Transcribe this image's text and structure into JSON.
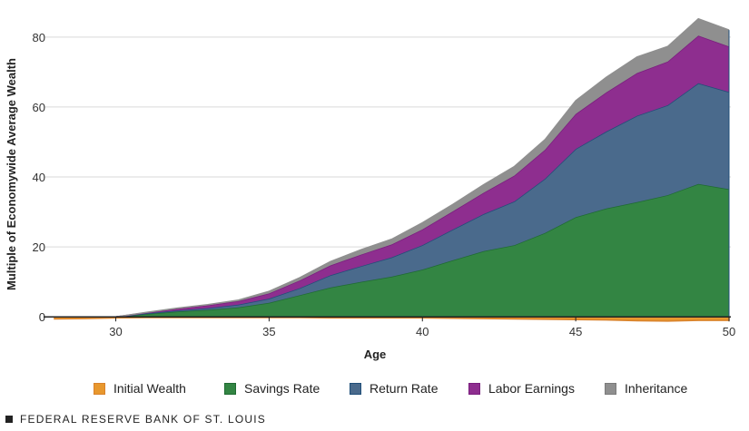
{
  "chart_data": {
    "type": "area",
    "stacked": true,
    "xlabel": "Age",
    "ylabel": "Multiple of Economywide Average Wealth",
    "xlim": [
      28,
      50
    ],
    "ylim": [
      -1.5,
      88
    ],
    "x_ticks": [
      30,
      35,
      40,
      45,
      50
    ],
    "y_ticks": [
      0,
      20,
      40,
      60,
      80
    ],
    "grid": "horizontal",
    "legend_position": "bottom",
    "x": [
      28,
      29,
      30,
      31,
      32,
      33,
      34,
      35,
      36,
      37,
      38,
      39,
      40,
      41,
      42,
      43,
      44,
      45,
      46,
      47,
      48,
      49,
      50
    ],
    "series": [
      {
        "name": "Initial Wealth",
        "color": "#E8982E",
        "stroke": "#D9822B",
        "values": [
          -0.6,
          -0.5,
          -0.3,
          -0.2,
          -0.2,
          -0.2,
          -0.2,
          -0.2,
          -0.2,
          -0.3,
          -0.3,
          -0.3,
          -0.3,
          -0.4,
          -0.5,
          -0.6,
          -0.7,
          -0.8,
          -0.9,
          -1.1,
          -1.2,
          -1.0,
          -1.0
        ]
      },
      {
        "name": "Savings Rate",
        "color": "#338543",
        "stroke": "#1F6B32",
        "values": [
          0,
          0,
          0,
          0.8,
          1.5,
          2.0,
          2.7,
          4.0,
          6.2,
          8.4,
          10.0,
          11.5,
          13.5,
          16.2,
          18.8,
          20.5,
          24.0,
          28.5,
          31.0,
          32.8,
          34.8,
          38.0,
          36.5
        ]
      },
      {
        "name": "Return Rate",
        "color": "#4A6A8C",
        "stroke": "#1F4E79",
        "values": [
          0,
          0,
          0,
          0.2,
          0.3,
          0.5,
          0.8,
          1.2,
          2.0,
          3.5,
          4.5,
          5.5,
          7.0,
          8.8,
          10.6,
          12.5,
          15.5,
          19.5,
          22.0,
          24.7,
          25.7,
          28.8,
          27.8
        ]
      },
      {
        "name": "Labor Earnings",
        "color": "#8E2E8F",
        "stroke": "#7A1E7E",
        "values": [
          0,
          0,
          0,
          0.2,
          0.5,
          0.8,
          1.0,
          1.5,
          2.2,
          2.8,
          3.3,
          3.7,
          4.5,
          5.2,
          6.1,
          7.4,
          8.3,
          10.0,
          11.2,
          12.2,
          12.5,
          13.6,
          13.0
        ]
      },
      {
        "name": "Inheritance",
        "color": "#8F8F8F",
        "stroke": "#8F8F8F",
        "values": [
          0,
          0,
          0,
          0.1,
          0.2,
          0.2,
          0.3,
          0.6,
          0.8,
          1.1,
          1.4,
          1.5,
          1.9,
          2.0,
          2.3,
          2.6,
          2.9,
          3.8,
          4.3,
          4.6,
          4.3,
          4.8,
          4.7
        ]
      }
    ]
  },
  "footer": {
    "source": "FEDERAL RESERVE BANK OF ST. LOUIS"
  }
}
